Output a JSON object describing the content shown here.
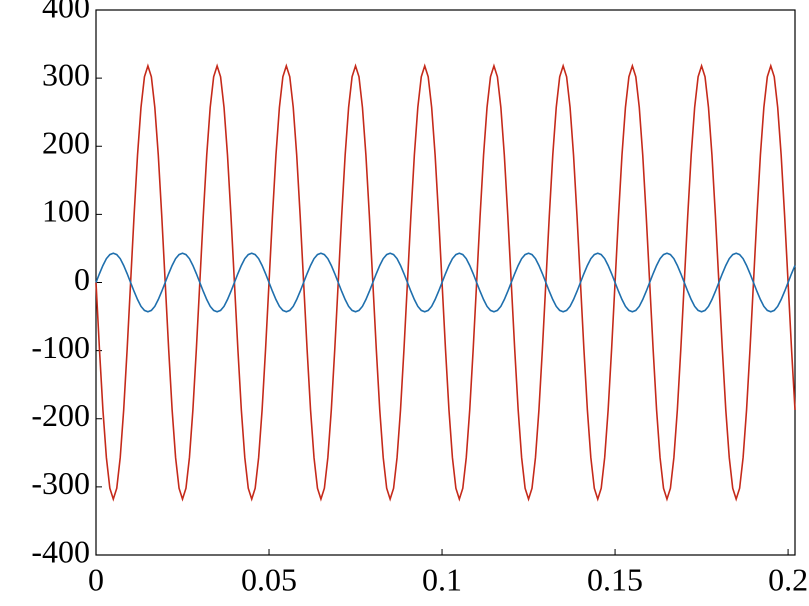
{
  "chart_data": {
    "type": "line",
    "xlim": [
      0,
      0.202
    ],
    "ylim": [
      -400,
      400
    ],
    "xticks": [
      0,
      0.05,
      0.1,
      0.15,
      0.2
    ],
    "yticks": [
      -400,
      -300,
      -200,
      -100,
      0,
      100,
      200,
      300,
      400
    ],
    "x": [
      0,
      0.001,
      0.002,
      0.003,
      0.004,
      0.005,
      0.006,
      0.007,
      0.008,
      0.009,
      0.01,
      0.011,
      0.012,
      0.013,
      0.014,
      0.015,
      0.016,
      0.017,
      0.018,
      0.019,
      0.02,
      0.021,
      0.022,
      0.023,
      0.024,
      0.025,
      0.026,
      0.027,
      0.028,
      0.029,
      0.03,
      0.031,
      0.032,
      0.033,
      0.034,
      0.035,
      0.036,
      0.037,
      0.038,
      0.039,
      0.04,
      0.041,
      0.042,
      0.043,
      0.044,
      0.045,
      0.046,
      0.047,
      0.048,
      0.049,
      0.05,
      0.051,
      0.052,
      0.053,
      0.054,
      0.055,
      0.056,
      0.057,
      0.058,
      0.059,
      0.06,
      0.061,
      0.062,
      0.063,
      0.064,
      0.065,
      0.066,
      0.067,
      0.068,
      0.069,
      0.07,
      0.071,
      0.072,
      0.073,
      0.074,
      0.075,
      0.076,
      0.077,
      0.078,
      0.079,
      0.08,
      0.081,
      0.082,
      0.083,
      0.084,
      0.085,
      0.086,
      0.087,
      0.088,
      0.089,
      0.09,
      0.091,
      0.092,
      0.093,
      0.094,
      0.095,
      0.096,
      0.097,
      0.098,
      0.099,
      0.1,
      0.101,
      0.102,
      0.103,
      0.104,
      0.105,
      0.106,
      0.107,
      0.108,
      0.109,
      0.11,
      0.111,
      0.112,
      0.113,
      0.114,
      0.115,
      0.116,
      0.117,
      0.118,
      0.119,
      0.12,
      0.121,
      0.122,
      0.123,
      0.124,
      0.125,
      0.126,
      0.127,
      0.128,
      0.129,
      0.13,
      0.131,
      0.132,
      0.133,
      0.134,
      0.135,
      0.136,
      0.137,
      0.138,
      0.139,
      0.14,
      0.141,
      0.142,
      0.143,
      0.144,
      0.145,
      0.146,
      0.147,
      0.148,
      0.149,
      0.15,
      0.151,
      0.152,
      0.153,
      0.154,
      0.155,
      0.156,
      0.157,
      0.158,
      0.159,
      0.16,
      0.161,
      0.162,
      0.163,
      0.164,
      0.165,
      0.166,
      0.167,
      0.168,
      0.169,
      0.17,
      0.171,
      0.172,
      0.173,
      0.174,
      0.175,
      0.176,
      0.177,
      0.178,
      0.179,
      0.18,
      0.181,
      0.182,
      0.183,
      0.184,
      0.185,
      0.186,
      0.187,
      0.188,
      0.189,
      0.19,
      0.191,
      0.192,
      0.193,
      0.194,
      0.195,
      0.196,
      0.197,
      0.198,
      0.199,
      0.2,
      0.201,
      0.202
    ],
    "series": [
      {
        "color": "#c52a1a",
        "values": [
          0,
          -98,
          -187,
          -257,
          -302,
          -318,
          -302,
          -257,
          -187,
          -98,
          0,
          98,
          187,
          257,
          302,
          318,
          302,
          257,
          187,
          98,
          0,
          -98,
          -187,
          -257,
          -302,
          -318,
          -302,
          -257,
          -187,
          -98,
          0,
          98,
          187,
          257,
          302,
          318,
          302,
          257,
          187,
          98,
          0,
          -98,
          -187,
          -257,
          -302,
          -318,
          -302,
          -257,
          -187,
          -98,
          0,
          98,
          187,
          257,
          302,
          318,
          302,
          257,
          187,
          98,
          0,
          -98,
          -187,
          -257,
          -302,
          -318,
          -302,
          -257,
          -187,
          -98,
          0,
          98,
          187,
          257,
          302,
          318,
          302,
          257,
          187,
          98,
          0,
          -98,
          -187,
          -257,
          -302,
          -318,
          -302,
          -257,
          -187,
          -98,
          0,
          98,
          187,
          257,
          302,
          318,
          302,
          257,
          187,
          98,
          0,
          -98,
          -187,
          -257,
          -302,
          -318,
          -302,
          -257,
          -187,
          -98,
          0,
          98,
          187,
          257,
          302,
          318,
          302,
          257,
          187,
          98,
          0,
          -98,
          -187,
          -257,
          -302,
          -318,
          -302,
          -257,
          -187,
          -98,
          0,
          98,
          187,
          257,
          302,
          318,
          302,
          257,
          187,
          98,
          0,
          -98,
          -187,
          -257,
          -302,
          -318,
          -302,
          -257,
          -187,
          -98,
          0,
          98,
          187,
          257,
          302,
          318,
          302,
          257,
          187,
          98,
          0,
          -98,
          -187,
          -257,
          -302,
          -318,
          -302,
          -257,
          -187,
          -98,
          0,
          98,
          187,
          257,
          302,
          318,
          302,
          257,
          187,
          98,
          0,
          -98,
          -187,
          -257,
          -302,
          -318,
          -302,
          -257,
          -187,
          -98,
          0,
          98,
          187,
          257,
          302,
          318,
          302,
          257,
          187,
          98,
          0,
          -98,
          -187
        ]
      },
      {
        "color": "#1f6fad",
        "values": [
          0,
          13,
          25,
          35,
          41,
          43,
          41,
          35,
          25,
          13,
          0,
          -13,
          -25,
          -35,
          -41,
          -43,
          -41,
          -35,
          -25,
          -13,
          0,
          13,
          25,
          35,
          41,
          43,
          41,
          35,
          25,
          13,
          0,
          -13,
          -25,
          -35,
          -41,
          -43,
          -41,
          -35,
          -25,
          -13,
          0,
          13,
          25,
          35,
          41,
          43,
          41,
          35,
          25,
          13,
          0,
          -13,
          -25,
          -35,
          -41,
          -43,
          -41,
          -35,
          -25,
          -13,
          0,
          13,
          25,
          35,
          41,
          43,
          41,
          35,
          25,
          13,
          0,
          -13,
          -25,
          -35,
          -41,
          -43,
          -41,
          -35,
          -25,
          -13,
          0,
          13,
          25,
          35,
          41,
          43,
          41,
          35,
          25,
          13,
          0,
          -13,
          -25,
          -35,
          -41,
          -43,
          -41,
          -35,
          -25,
          -13,
          0,
          13,
          25,
          35,
          41,
          43,
          41,
          35,
          25,
          13,
          0,
          -13,
          -25,
          -35,
          -41,
          -43,
          -41,
          -35,
          -25,
          -13,
          0,
          13,
          25,
          35,
          41,
          43,
          41,
          35,
          25,
          13,
          0,
          -13,
          -25,
          -35,
          -41,
          -43,
          -41,
          -35,
          -25,
          -13,
          0,
          13,
          25,
          35,
          41,
          43,
          41,
          35,
          25,
          13,
          0,
          -13,
          -25,
          -35,
          -41,
          -43,
          -41,
          -35,
          -25,
          -13,
          0,
          13,
          25,
          35,
          41,
          43,
          41,
          35,
          25,
          13,
          0,
          -13,
          -25,
          -35,
          -41,
          -43,
          -41,
          -35,
          -25,
          -13,
          0,
          13,
          25,
          35,
          41,
          43,
          41,
          35,
          25,
          13,
          0,
          -13,
          -25,
          -35,
          -41,
          -43,
          -41,
          -35,
          -25,
          -13,
          0,
          13,
          25
        ]
      }
    ]
  }
}
